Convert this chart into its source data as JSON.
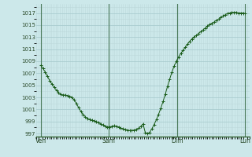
{
  "bg_color": "#cce8ea",
  "grid_major_color": "#aacdd0",
  "grid_minor_color": "#bcd8da",
  "line_color": "#1a5c1a",
  "marker_color": "#1a5c1a",
  "tick_label_color": "#2a4a2a",
  "spine_color": "#3a6a3a",
  "vline_color": "#4a7a5a",
  "ylim": [
    996.5,
    1018.5
  ],
  "yticks": [
    997,
    999,
    1001,
    1003,
    1005,
    1007,
    1009,
    1011,
    1013,
    1015,
    1017
  ],
  "xtick_labels": [
    "Ven",
    "Sam",
    "Dim",
    "Lun"
  ],
  "xtick_positions": [
    0,
    32,
    64,
    96
  ],
  "xlim": [
    -2,
    98
  ],
  "pressure": [
    1008.3,
    1007.8,
    1007.2,
    1006.5,
    1005.8,
    1005.2,
    1004.7,
    1004.2,
    1003.8,
    1003.5,
    1003.4,
    1003.4,
    1003.3,
    1003.2,
    1003.0,
    1002.6,
    1002.0,
    1001.3,
    1000.7,
    1000.2,
    999.8,
    999.5,
    999.3,
    999.2,
    999.1,
    999.0,
    998.8,
    998.6,
    998.4,
    998.2,
    998.1,
    998.1,
    998.2,
    998.3,
    998.2,
    998.1,
    997.9,
    997.8,
    997.7,
    997.6,
    997.5,
    997.5,
    997.6,
    997.7,
    997.9,
    998.2,
    998.6,
    997.2,
    997.0,
    997.2,
    997.8,
    998.5,
    999.3,
    1000.2,
    1001.2,
    1002.3,
    1003.5,
    1004.8,
    1006.0,
    1007.2,
    1008.2,
    1009.0,
    1009.7,
    1010.3,
    1010.8,
    1011.3,
    1011.8,
    1012.3,
    1012.7,
    1013.0,
    1013.3,
    1013.6,
    1013.9,
    1014.2,
    1014.5,
    1014.8,
    1015.1,
    1015.3,
    1015.5,
    1015.8,
    1016.0,
    1016.3,
    1016.5,
    1016.7,
    1016.9,
    1017.0,
    1017.1,
    1017.1,
    1017.1,
    1017.0,
    1017.0,
    1017.0,
    1016.9
  ]
}
